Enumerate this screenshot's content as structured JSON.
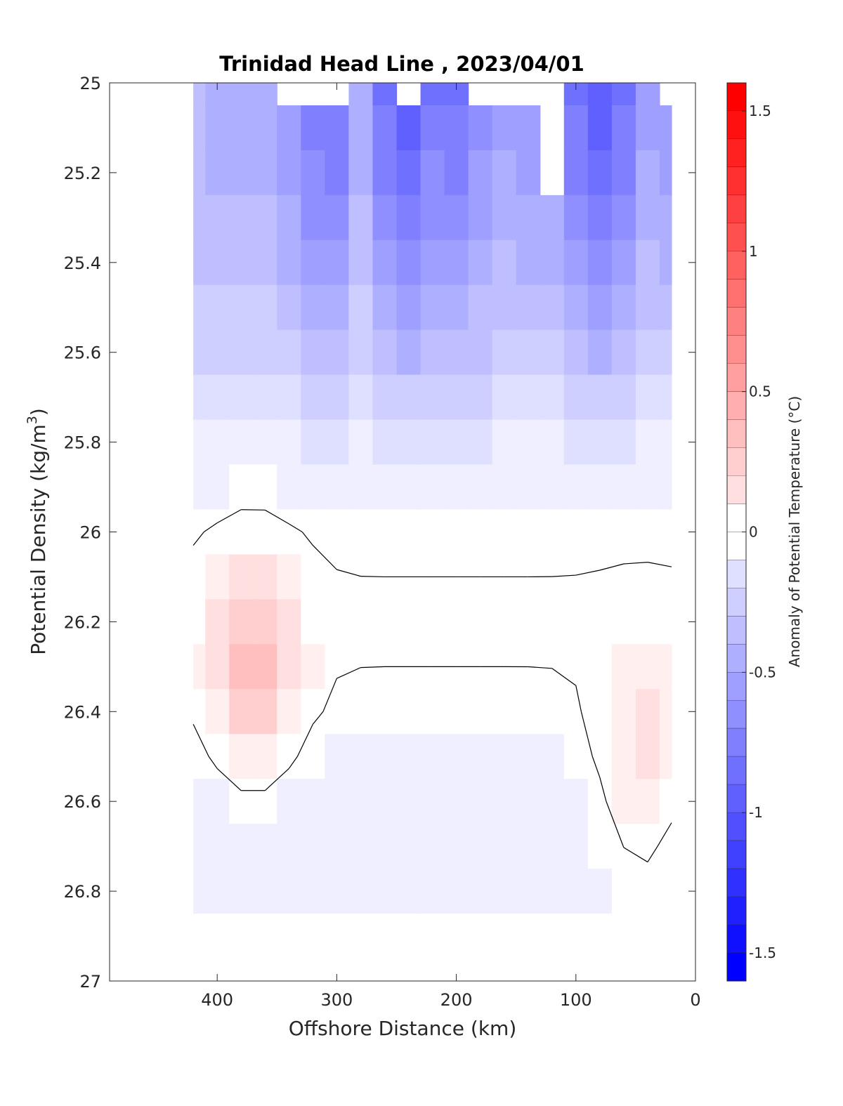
{
  "chart_data": {
    "type": "heatmap",
    "subtype": "filled-contour section",
    "title": "Trinidad Head Line , 2023/04/01",
    "xlabel": "Offshore Distance (km)",
    "ylabel_prefix": "Potential Density (kg/m",
    "ylabel_sup": "3",
    "ylabel_suffix": ")",
    "colorbar_label": "Anomaly of Potential Temperature (°C)",
    "xlim": [
      490,
      0
    ],
    "x_reversed": true,
    "ylim": [
      25,
      27
    ],
    "y_reversed": true,
    "clim": [
      -1.6,
      1.6
    ],
    "colormap": {
      "low": "#0000ff",
      "mid": "#ffffff",
      "high": "#ff0000"
    },
    "contour_line_color": "#000000",
    "x_ticks": [
      400,
      300,
      200,
      100,
      0
    ],
    "x_tick_labels": [
      "400",
      "300",
      "200",
      "100",
      "0"
    ],
    "y_ticks": [
      25,
      25.2,
      25.4,
      25.6,
      25.8,
      26,
      26.2,
      26.4,
      26.6,
      26.8,
      27
    ],
    "y_tick_labels": [
      "25",
      "25.2",
      "25.4",
      "25.6",
      "25.8",
      "26",
      "26.2",
      "26.4",
      "26.6",
      "26.8",
      "27"
    ],
    "colorbar_ticks": [
      1.5,
      1,
      0.5,
      0,
      -0.5,
      -1,
      -1.5
    ],
    "colorbar_tick_labels": [
      "1.5",
      "1",
      "0.5",
      "0",
      "-0.5",
      "-1",
      "-1.5"
    ],
    "x_grid_km": [
      420,
      400,
      380,
      360,
      340,
      320,
      300,
      280,
      260,
      240,
      220,
      200,
      180,
      160,
      140,
      120,
      100,
      80,
      60,
      40,
      20
    ],
    "y_grid_density": [
      25.0,
      25.1,
      25.2,
      25.3,
      25.4,
      25.5,
      25.6,
      25.7,
      25.8,
      25.9,
      26.0,
      26.1,
      26.2,
      26.3,
      26.4,
      26.5,
      26.6,
      26.7,
      26.8,
      26.9
    ],
    "anomaly_profile_by_density": [
      -0.7,
      -0.65,
      -0.6,
      -0.55,
      -0.5,
      -0.42,
      -0.35,
      -0.25,
      -0.15,
      -0.07,
      -0.02,
      0.0,
      0.0,
      0.0,
      -0.03,
      -0.07,
      -0.1,
      -0.09,
      -0.07,
      -0.05
    ],
    "anomaly_offset_by_distance": [
      0.25,
      0.15,
      0.18,
      0.15,
      0.0,
      -0.15,
      -0.2,
      0.15,
      -0.2,
      -0.35,
      -0.18,
      -0.2,
      -0.05,
      0.1,
      0.0,
      0.05,
      -0.2,
      -0.35,
      -0.2,
      0.1,
      0.05
    ],
    "warm_core_centers": [
      {
        "x_km": 370,
        "density": 26.3,
        "peak": 0.45
      },
      {
        "x_km": 45,
        "density": 26.5,
        "peak": 0.25
      }
    ],
    "min_valid_density_by_distance": [
      25.0,
      25.0,
      25.0,
      25.0,
      25.1,
      25.1,
      25.1,
      25.0,
      25.0,
      25.1,
      25.0,
      25.0,
      25.1,
      25.1,
      25.1,
      25.3,
      25.0,
      25.0,
      25.0,
      25.0,
      25.1
    ]
  }
}
